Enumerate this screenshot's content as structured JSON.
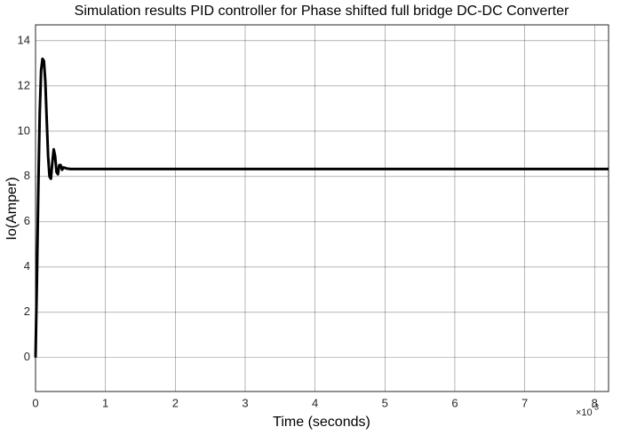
{
  "chart_data": {
    "type": "line",
    "title": "Simulation results PID controller for Phase shifted full bridge DC-DC Converter",
    "x_label": "Time (seconds)",
    "y_label": "Io(Amper)",
    "x_multiplier": {
      "base": "×10",
      "exponent": "-3"
    },
    "x": [
      0,
      0.02,
      0.04,
      0.06,
      0.08,
      0.1,
      0.12,
      0.14,
      0.16,
      0.18,
      0.2,
      0.22,
      0.24,
      0.26,
      0.28,
      0.3,
      0.32,
      0.34,
      0.36,
      0.38,
      0.4,
      0.45,
      0.5,
      0.6,
      8.2
    ],
    "series": [
      {
        "color": "#000000",
        "values": [
          0,
          3.5,
          7.5,
          10.8,
          12.7,
          13.2,
          13.1,
          12.2,
          10.5,
          8.9,
          8.0,
          7.9,
          8.6,
          9.2,
          8.9,
          8.2,
          8.1,
          8.5,
          8.5,
          8.3,
          8.4,
          8.35,
          8.33,
          8.33,
          8.33
        ]
      }
    ],
    "xlim": [
      0,
      8.2
    ],
    "ylim": [
      -1.5,
      14.7
    ],
    "xticks": [
      0,
      1,
      2,
      3,
      4,
      5,
      6,
      7,
      8
    ],
    "yticks": [
      0,
      2,
      4,
      6,
      8,
      10,
      12,
      14
    ],
    "grid": true
  }
}
